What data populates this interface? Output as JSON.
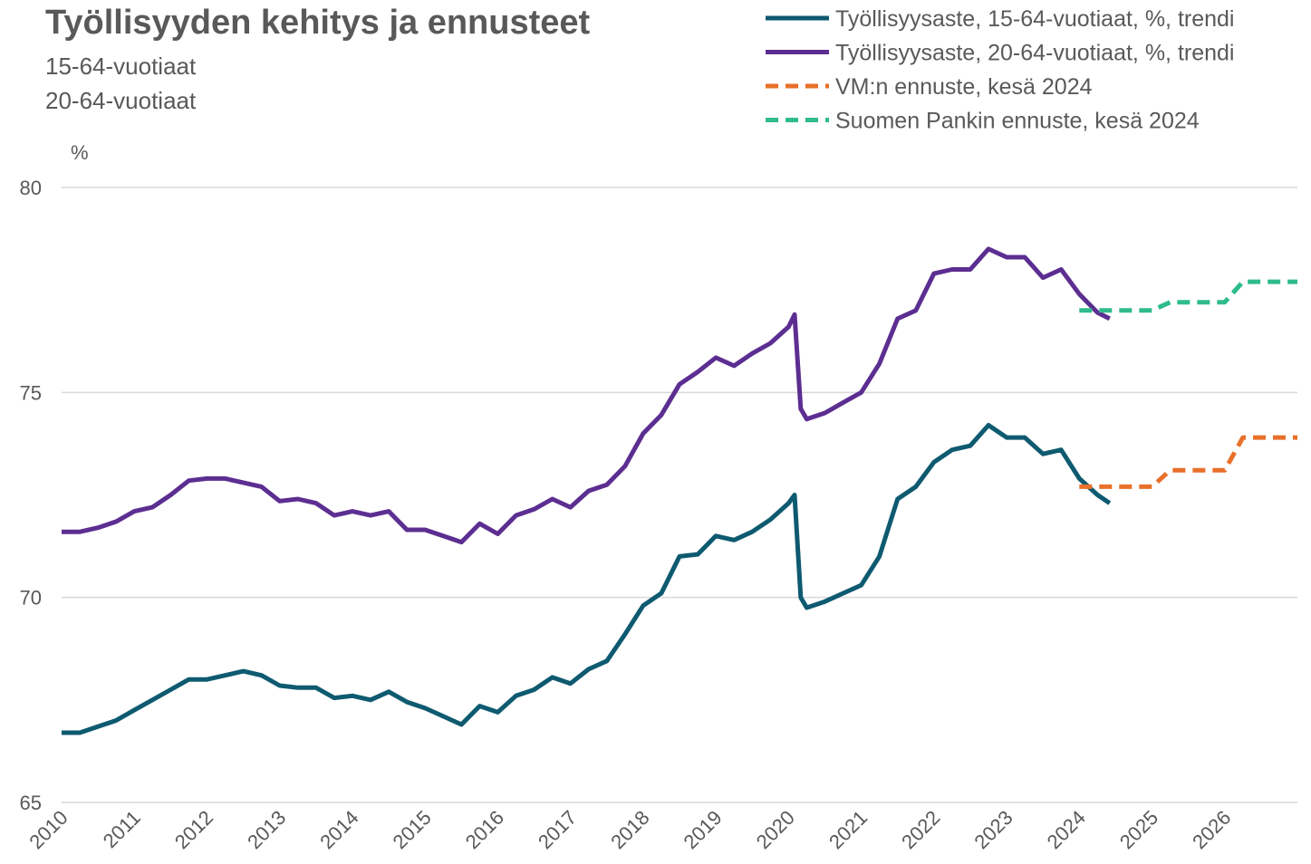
{
  "chart_data": {
    "type": "line",
    "title": "Työllisyyden kehitys ja ennusteet",
    "subtitle": [
      "15-64-vuotiaat",
      "20-64-vuotiaat"
    ],
    "y_label": "%",
    "xlim": [
      2010,
      2027
    ],
    "xticks": [
      2010,
      2011,
      2012,
      2013,
      2014,
      2015,
      2016,
      2017,
      2018,
      2019,
      2020,
      2021,
      2022,
      2023,
      2024,
      2025,
      2026
    ],
    "ylim": [
      65,
      80
    ],
    "yticks": [
      65,
      70,
      75,
      80
    ],
    "grid": true,
    "legend": "top-right",
    "x": [
      2010,
      2010.25,
      2010.5,
      2010.75,
      2011,
      2011.25,
      2011.5,
      2011.75,
      2012,
      2012.25,
      2012.5,
      2012.75,
      2013,
      2013.25,
      2013.5,
      2013.75,
      2014,
      2014.25,
      2014.5,
      2014.75,
      2015,
      2015.25,
      2015.5,
      2015.75,
      2016,
      2016.25,
      2016.5,
      2016.75,
      2017,
      2017.25,
      2017.5,
      2017.75,
      2018,
      2018.25,
      2018.5,
      2018.75,
      2019,
      2019.25,
      2019.5,
      2019.75,
      2020,
      2020.083,
      2020.167,
      2020.25,
      2020.5,
      2020.75,
      2021,
      2021.25,
      2021.5,
      2021.75,
      2022,
      2022.25,
      2022.5,
      2022.75,
      2023,
      2023.25,
      2023.5,
      2023.75,
      2024,
      2024.25,
      2024.417,
      2024.5,
      2024.75,
      2025,
      2025.25,
      2025.5,
      2025.75,
      2026,
      2026.25,
      2026.5,
      2026.75,
      2027
    ],
    "series": [
      {
        "name": "Työllisyysaste, 15-64-vuotiaat, %, trendi",
        "color": "#0e5a70",
        "style": "solid",
        "values": [
          66.7,
          66.7,
          66.85,
          67.0,
          67.25,
          67.5,
          67.75,
          68.0,
          68.0,
          68.1,
          68.2,
          68.1,
          67.85,
          67.8,
          67.8,
          67.55,
          67.6,
          67.5,
          67.7,
          67.45,
          67.3,
          67.1,
          66.9,
          67.35,
          67.2,
          67.6,
          67.75,
          68.05,
          67.9,
          68.25,
          68.45,
          69.1,
          69.8,
          70.1,
          71.0,
          71.05,
          71.5,
          71.4,
          71.6,
          71.9,
          72.3,
          72.5,
          70.0,
          69.75,
          69.9,
          70.1,
          70.3,
          71.0,
          72.4,
          72.7,
          73.3,
          73.6,
          73.7,
          74.2,
          73.9,
          73.9,
          73.5,
          73.6,
          72.9,
          72.5,
          72.3,
          null,
          null,
          null,
          null,
          null,
          null,
          null,
          null,
          null,
          null,
          null
        ]
      },
      {
        "name": "Työllisyysaste, 20-64-vuotiaat, %, trendi",
        "color": "#5c2e91",
        "style": "solid",
        "values": [
          71.6,
          71.6,
          71.7,
          71.85,
          72.1,
          72.2,
          72.5,
          72.85,
          72.9,
          72.9,
          72.8,
          72.7,
          72.35,
          72.4,
          72.3,
          72.0,
          72.1,
          72.0,
          72.1,
          71.65,
          71.65,
          71.5,
          71.35,
          71.8,
          71.55,
          72.0,
          72.15,
          72.4,
          72.2,
          72.6,
          72.75,
          73.2,
          74.0,
          74.45,
          75.2,
          75.5,
          75.85,
          75.65,
          75.95,
          76.2,
          76.6,
          76.9,
          74.6,
          74.35,
          74.5,
          74.75,
          75.0,
          75.7,
          76.8,
          77.0,
          77.9,
          78.0,
          78.0,
          78.5,
          78.3,
          78.3,
          77.8,
          78.0,
          77.4,
          76.95,
          76.8,
          null,
          null,
          null,
          null,
          null,
          null,
          null,
          null,
          null,
          null,
          null
        ]
      },
      {
        "name": "VM:n ennuste, kesä 2024",
        "color": "#e8702a",
        "style": "dashed",
        "values": [
          null,
          null,
          null,
          null,
          null,
          null,
          null,
          null,
          null,
          null,
          null,
          null,
          null,
          null,
          null,
          null,
          null,
          null,
          null,
          null,
          null,
          null,
          null,
          null,
          null,
          null,
          null,
          null,
          null,
          null,
          null,
          null,
          null,
          null,
          null,
          null,
          null,
          null,
          null,
          null,
          null,
          null,
          null,
          null,
          null,
          null,
          null,
          null,
          null,
          null,
          null,
          null,
          null,
          null,
          null,
          null,
          null,
          null,
          72.7,
          72.7,
          72.7,
          72.7,
          72.7,
          72.7,
          73.1,
          73.1,
          73.1,
          73.1,
          73.9,
          73.9,
          73.9,
          73.9
        ]
      },
      {
        "name": "Suomen Pankin ennuste, kesä 2024",
        "color": "#2fbb8c",
        "style": "dashed",
        "values": [
          null,
          null,
          null,
          null,
          null,
          null,
          null,
          null,
          null,
          null,
          null,
          null,
          null,
          null,
          null,
          null,
          null,
          null,
          null,
          null,
          null,
          null,
          null,
          null,
          null,
          null,
          null,
          null,
          null,
          null,
          null,
          null,
          null,
          null,
          null,
          null,
          null,
          null,
          null,
          null,
          null,
          null,
          null,
          null,
          null,
          null,
          null,
          null,
          null,
          null,
          null,
          null,
          null,
          null,
          null,
          null,
          null,
          null,
          77.0,
          77.0,
          77.0,
          77.0,
          77.0,
          77.0,
          77.2,
          77.2,
          77.2,
          77.2,
          77.7,
          77.7,
          77.7,
          77.7
        ]
      }
    ]
  }
}
